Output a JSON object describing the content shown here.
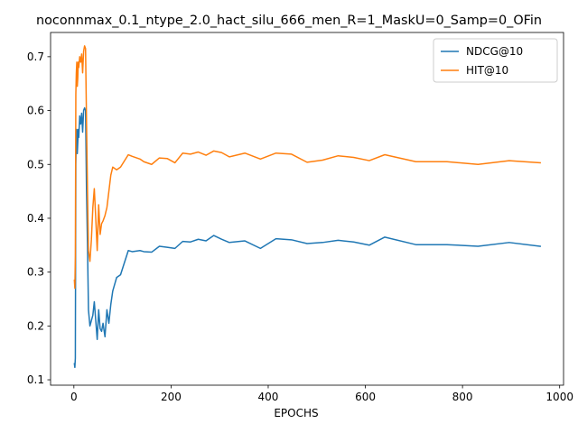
{
  "chart_data": {
    "type": "line",
    "title": "noconnmax_0.1_ntype_2.0_hact_silu_666_men_R=1_MaskU=0_Samp=0_OFin",
    "xlabel": "EPOCHS",
    "ylabel": "",
    "xlim": [
      -48,
      1008
    ],
    "ylim": [
      0.09,
      0.745
    ],
    "xticks": [
      0,
      200,
      400,
      600,
      800,
      1000
    ],
    "yticks": [
      0.1,
      0.2,
      0.3,
      0.4,
      0.5,
      0.6,
      0.7
    ],
    "grid": false,
    "legend_position": "top-right",
    "series": [
      {
        "name": "NDCG@10",
        "color": "#1f77b4",
        "x": [
          1,
          2,
          3,
          4,
          5,
          6,
          7,
          8,
          9,
          10,
          12,
          14,
          16,
          18,
          20,
          22,
          24,
          26,
          28,
          30,
          33,
          36,
          39,
          42,
          45,
          48,
          51,
          54,
          57,
          60,
          64,
          68,
          72,
          76,
          80,
          88,
          96,
          112,
          120,
          136,
          144,
          160,
          176,
          192,
          208,
          224,
          240,
          256,
          272,
          288,
          304,
          320,
          352,
          384,
          416,
          448,
          480,
          512,
          544,
          576,
          608,
          640,
          704,
          768,
          832,
          896,
          960
        ],
        "y": [
          0.13,
          0.123,
          0.14,
          0.5,
          0.555,
          0.565,
          0.52,
          0.54,
          0.565,
          0.55,
          0.59,
          0.575,
          0.595,
          0.56,
          0.6,
          0.605,
          0.6,
          0.45,
          0.35,
          0.23,
          0.2,
          0.21,
          0.22,
          0.245,
          0.21,
          0.175,
          0.23,
          0.195,
          0.19,
          0.205,
          0.18,
          0.23,
          0.205,
          0.24,
          0.265,
          0.29,
          0.295,
          0.34,
          0.338,
          0.34,
          0.338,
          0.337,
          0.348,
          0.346,
          0.344,
          0.357,
          0.356,
          0.361,
          0.358,
          0.368,
          0.361,
          0.355,
          0.358,
          0.344,
          0.362,
          0.36,
          0.353,
          0.355,
          0.359,
          0.356,
          0.35,
          0.365,
          0.351,
          0.351,
          0.348,
          0.355,
          0.348
        ]
      },
      {
        "name": "HIT@10",
        "color": "#ff7f0e",
        "x": [
          1,
          2,
          3,
          4,
          5,
          6,
          7,
          8,
          9,
          10,
          12,
          14,
          16,
          18,
          20,
          22,
          24,
          26,
          28,
          30,
          33,
          36,
          39,
          42,
          45,
          48,
          51,
          54,
          57,
          60,
          64,
          68,
          72,
          76,
          80,
          88,
          96,
          112,
          120,
          136,
          144,
          160,
          176,
          192,
          208,
          224,
          240,
          256,
          272,
          288,
          304,
          320,
          352,
          384,
          416,
          448,
          480,
          512,
          544,
          576,
          608,
          640,
          704,
          768,
          832,
          896,
          960
        ],
        "y": [
          0.285,
          0.27,
          0.33,
          0.63,
          0.67,
          0.69,
          0.645,
          0.66,
          0.69,
          0.68,
          0.7,
          0.69,
          0.705,
          0.67,
          0.71,
          0.72,
          0.715,
          0.58,
          0.45,
          0.34,
          0.32,
          0.36,
          0.42,
          0.455,
          0.4,
          0.34,
          0.425,
          0.37,
          0.39,
          0.395,
          0.405,
          0.42,
          0.45,
          0.48,
          0.495,
          0.49,
          0.495,
          0.518,
          0.515,
          0.51,
          0.505,
          0.5,
          0.512,
          0.511,
          0.503,
          0.521,
          0.519,
          0.523,
          0.517,
          0.525,
          0.522,
          0.514,
          0.521,
          0.51,
          0.521,
          0.519,
          0.504,
          0.508,
          0.516,
          0.513,
          0.507,
          0.518,
          0.505,
          0.505,
          0.5,
          0.507,
          0.503
        ]
      }
    ]
  }
}
